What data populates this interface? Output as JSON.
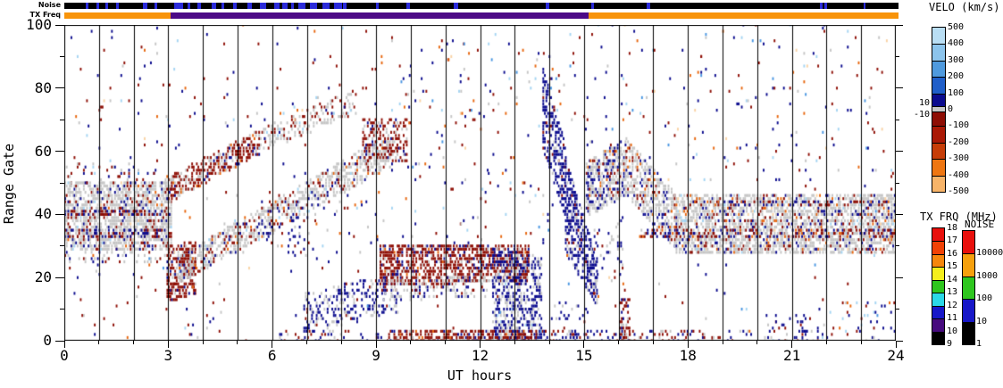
{
  "strip_labels": {
    "noise": "Noise",
    "tx_freq": "TX Freq"
  },
  "chart_data": {
    "type": "heatmap",
    "title": "",
    "xlabel": "UT hours",
    "ylabel": "Range Gate",
    "xlim": [
      0,
      24
    ],
    "ylim": [
      0,
      100
    ],
    "xticks": [
      0,
      3,
      6,
      9,
      12,
      15,
      18,
      21,
      24
    ],
    "xtick_minor_every": 1,
    "yticks": [
      0,
      20,
      40,
      60,
      80,
      100
    ],
    "ytick_minor_every": 10,
    "hour_gridlines": true,
    "grid_color": "#000000",
    "palette": {
      "gs": "#c6c6c6",
      "nvy": "#0b0b8e",
      "dred": "#8e0e05",
      "red2": "#b22208",
      "org": "#e8670f",
      "lorg": "#f59a4a",
      "pch": "#f9d3a5",
      "lbl": "#a5d5f3",
      "mbl": "#4a97e2"
    },
    "noise_strip": {
      "bg": "#000000",
      "mark_color": "#2b2bd9",
      "marks_hours": [
        [
          0.62,
          0.7
        ],
        [
          0.93,
          1.0
        ],
        [
          1.18,
          1.26
        ],
        [
          1.5,
          1.58
        ],
        [
          2.27,
          2.4
        ],
        [
          2.6,
          2.68
        ],
        [
          3.17,
          3.42
        ],
        [
          3.55,
          3.63
        ],
        [
          3.82,
          3.93
        ],
        [
          4.23,
          4.37
        ],
        [
          4.53,
          4.6
        ],
        [
          4.85,
          4.96
        ],
        [
          5.26,
          5.4
        ],
        [
          5.62,
          5.8
        ],
        [
          6.03,
          6.2
        ],
        [
          6.28,
          6.42
        ],
        [
          6.52,
          6.6
        ],
        [
          6.73,
          6.95
        ],
        [
          7.06,
          7.28
        ],
        [
          7.42,
          7.62
        ],
        [
          7.76,
          7.98
        ],
        [
          8.01,
          8.12
        ],
        [
          8.98,
          9.05
        ],
        [
          9.85,
          9.95
        ],
        [
          11.2,
          11.32
        ],
        [
          13.85,
          13.95
        ],
        [
          15.15,
          15.25
        ],
        [
          16.75,
          16.85
        ],
        [
          21.75,
          21.82
        ],
        [
          21.88,
          21.95
        ],
        [
          23.0,
          23.06
        ]
      ]
    },
    "txfreq_strip": {
      "segments": [
        {
          "from": 0,
          "to": 3.05,
          "color": "#f8940a"
        },
        {
          "from": 3.05,
          "to": 15.08,
          "color": "#4c0a86"
        },
        {
          "from": 15.08,
          "to": 24,
          "color": "#f8940a"
        }
      ]
    },
    "colorbars": {
      "velo": {
        "title": "VELO (km/s)",
        "labels": [
          "500",
          "400",
          "300",
          "200",
          "100",
          "0",
          "-100",
          "-200",
          "-300",
          "-400",
          "-500"
        ],
        "zero_side_labels": [
          "10",
          "-10"
        ],
        "segment_colors": [
          "#b9def4",
          "#8cc4ec",
          "#4f9ade",
          "#1f5ec9",
          "#0b0b8e",
          "#8e0e05",
          "#aa1906",
          "#c63d08",
          "#ee7612",
          "#f7b469"
        ],
        "zero_band_color": "#c6c6c6"
      },
      "txfrq": {
        "title": "TX FRQ (MHz)",
        "labels": [
          "18",
          "17",
          "16",
          "15",
          "14",
          "13",
          "12",
          "11",
          "10",
          "9"
        ],
        "segment_colors": [
          "#e8100c",
          "#f04206",
          "#f6870d",
          "#f4ee1c",
          "#2ec61e",
          "#2bd8e8",
          "#1717c8",
          "#470b7e",
          "#000000"
        ]
      },
      "noise": {
        "title": "NOISE",
        "labels": [
          "10000",
          "1000",
          "100",
          "10",
          "1"
        ],
        "segment_colors": [
          "#e8100c",
          "#f6a00d",
          "#2ec61e",
          "#1717c8",
          "#000000"
        ]
      }
    },
    "features": [
      {
        "t": [
          0,
          3.1
        ],
        "g0": [
          29,
          50
        ],
        "g1": [
          29,
          50
        ],
        "d": 0.62,
        "mix": {
          "gs": 0.75,
          "dred": 0.11,
          "nvy": 0.09,
          "org": 0.02,
          "lbl": 0.02,
          "pch": 0.01
        }
      },
      {
        "t": [
          0,
          3.05
        ],
        "g0": [
          40,
          41
        ],
        "g1": [
          40,
          41
        ],
        "d": 0.5,
        "mix": {
          "dred": 0.5,
          "nvy": 0.3,
          "gs": 0.2
        }
      },
      {
        "t": [
          0,
          3.05
        ],
        "g0": [
          33,
          35
        ],
        "g1": [
          33,
          35
        ],
        "d": 0.45,
        "mix": {
          "nvy": 0.4,
          "dred": 0.4,
          "gs": 0.2
        }
      },
      {
        "t": [
          0,
          3.1
        ],
        "g0": [
          50,
          56
        ],
        "g1": [
          50,
          56
        ],
        "d": 0.08,
        "mix": {
          "dred": 0.4,
          "nvy": 0.3,
          "gs": 0.3
        }
      },
      {
        "t": [
          0,
          3.1
        ],
        "g0": [
          25,
          29
        ],
        "g1": [
          25,
          29
        ],
        "d": 0.12,
        "mix": {
          "gs": 0.6,
          "nvy": 0.2,
          "dred": 0.2
        }
      },
      {
        "t": [
          2.9,
          5.6
        ],
        "g0": [
          44,
          52
        ],
        "g1": [
          60,
          67
        ],
        "d": 0.5,
        "mix": {
          "dred": 0.6,
          "gs": 0.25,
          "nvy": 0.1,
          "org": 0.05
        }
      },
      {
        "t": [
          5.6,
          8.4
        ],
        "g0": [
          60,
          67
        ],
        "g1": [
          73,
          80
        ],
        "d": 0.33,
        "mix": {
          "gs": 0.55,
          "dred": 0.33,
          "nvy": 0.06,
          "lbl": 0.06
        }
      },
      {
        "t": [
          2.95,
          3.8
        ],
        "g0": [
          13,
          30
        ],
        "g1": [
          16,
          32
        ],
        "d": 0.55,
        "mix": {
          "dred": 0.75,
          "gs": 0.15,
          "nvy": 0.1
        }
      },
      {
        "t": [
          3.3,
          9.4
        ],
        "g0": [
          19,
          27
        ],
        "g1": [
          56,
          66
        ],
        "d": 0.5,
        "mix": {
          "gs": 0.7,
          "dred": 0.13,
          "nvy": 0.1,
          "org": 0.04,
          "lbl": 0.03
        }
      },
      {
        "t": [
          8.6,
          9.9
        ],
        "g0": [
          57,
          70
        ],
        "g1": [
          57,
          70
        ],
        "d": 0.42,
        "mix": {
          "dred": 0.68,
          "gs": 0.22,
          "nvy": 0.1
        }
      },
      {
        "t": [
          6.9,
          9.6
        ],
        "g0": [
          3,
          15
        ],
        "g1": [
          10,
          22
        ],
        "d": 0.28,
        "mix": {
          "nvy": 0.6,
          "gs": 0.3,
          "dred": 0.1
        }
      },
      {
        "t": [
          9.1,
          13.4
        ],
        "g0": [
          18,
          30
        ],
        "g1": [
          20,
          31
        ],
        "d": 0.55,
        "mix": {
          "dred": 0.78,
          "gs": 0.1,
          "nvy": 0.1,
          "org": 0.02
        }
      },
      {
        "t": [
          9.2,
          12.2
        ],
        "g0": [
          13,
          19
        ],
        "g1": [
          15,
          21
        ],
        "d": 0.28,
        "mix": {
          "gs": 0.6,
          "nvy": 0.25,
          "dred": 0.15
        }
      },
      {
        "t": [
          12.35,
          13.75
        ],
        "g0": [
          0,
          30
        ],
        "g1": [
          0,
          26
        ],
        "d": 0.5,
        "mix": {
          "nvy": 0.62,
          "gs": 0.3,
          "dred": 0.05,
          "lbl": 0.03
        }
      },
      {
        "t": [
          13.8,
          14.45
        ],
        "g0": [
          60,
          86
        ],
        "g1": [
          40,
          62
        ],
        "d": 0.5,
        "mix": {
          "nvy": 0.85,
          "gs": 0.08,
          "dred": 0.07
        }
      },
      {
        "t": [
          14.45,
          15.35
        ],
        "g0": [
          28,
          58
        ],
        "g1": [
          12,
          26
        ],
        "d": 0.55,
        "mix": {
          "nvy": 0.75,
          "gs": 0.2,
          "dred": 0.05
        }
      },
      {
        "t": [
          15.05,
          16.2
        ],
        "g0": [
          40,
          57
        ],
        "g1": [
          47,
          64
        ],
        "d": 0.52,
        "mix": {
          "gs": 0.58,
          "nvy": 0.3,
          "dred": 0.08,
          "org": 0.04
        }
      },
      {
        "t": [
          16.2,
          17.6
        ],
        "g0": [
          47,
          64
        ],
        "g1": [
          30,
          47
        ],
        "d": 0.52,
        "mix": {
          "gs": 0.66,
          "nvy": 0.18,
          "dred": 0.11,
          "org": 0.05
        }
      },
      {
        "t": [
          17.6,
          24
        ],
        "g0": [
          28,
          47
        ],
        "g1": [
          28,
          46
        ],
        "d": 0.6,
        "mix": {
          "gs": 0.72,
          "dred": 0.1,
          "nvy": 0.1,
          "org": 0.04,
          "lbl": 0.02,
          "pch": 0.02
        }
      },
      {
        "t": [
          16.5,
          24
        ],
        "g0": [
          33,
          35
        ],
        "g1": [
          33,
          35
        ],
        "d": 0.3,
        "mix": {
          "dred": 0.45,
          "nvy": 0.35,
          "org": 0.1,
          "gs": 0.1
        }
      },
      {
        "t": [
          18,
          24
        ],
        "g0": [
          43,
          44
        ],
        "g1": [
          43,
          44
        ],
        "d": 0.25,
        "mix": {
          "nvy": 0.4,
          "dred": 0.3,
          "org": 0.15,
          "gs": 0.15
        }
      },
      {
        "t": [
          15.1,
          16.1
        ],
        "g0": [
          14,
          34
        ],
        "g1": [
          22,
          40
        ],
        "d": 0.12,
        "mix": {
          "nvy": 0.5,
          "gs": 0.35,
          "dred": 0.15
        }
      },
      {
        "t": [
          14.0,
          15.1
        ],
        "g0": [
          0,
          12
        ],
        "g1": [
          0,
          12
        ],
        "d": 0.1,
        "mix": {
          "nvy": 0.7,
          "gs": 0.2,
          "dred": 0.1
        }
      },
      {
        "t": [
          6.2,
          9.5
        ],
        "g0": [
          0,
          3
        ],
        "g1": [
          0,
          3
        ],
        "d": 0.2,
        "mix": {
          "nvy": 0.5,
          "dred": 0.35,
          "gs": 0.15
        }
      },
      {
        "t": [
          9.5,
          13.6
        ],
        "g0": [
          0,
          3
        ],
        "g1": [
          0,
          3
        ],
        "d": 0.6,
        "mix": {
          "dred": 0.72,
          "nvy": 0.12,
          "gs": 0.12,
          "org": 0.04
        }
      },
      {
        "t": [
          13.6,
          18
        ],
        "g0": [
          0,
          3
        ],
        "g1": [
          0,
          3
        ],
        "d": 0.22,
        "mix": {
          "nvy": 0.45,
          "dred": 0.4,
          "gs": 0.15
        }
      },
      {
        "t": [
          18,
          20.2
        ],
        "g0": [
          0,
          3
        ],
        "g1": [
          0,
          3
        ],
        "d": 0.12,
        "mix": {
          "nvy": 0.5,
          "dred": 0.35,
          "gs": 0.15
        }
      },
      {
        "t": [
          20.2,
          21.5
        ],
        "g0": [
          0,
          8
        ],
        "g1": [
          0,
          8
        ],
        "d": 0.18,
        "mix": {
          "nvy": 0.7,
          "gs": 0.15,
          "dred": 0.15
        }
      },
      {
        "t": [
          21.5,
          24
        ],
        "g0": [
          0,
          12
        ],
        "g1": [
          0,
          12
        ],
        "d": 0.07,
        "mix": {
          "nvy": 0.4,
          "dred": 0.25,
          "org": 0.15,
          "gs": 0.1,
          "lbl": 0.1
        }
      },
      {
        "t": [
          16.02,
          16.3
        ],
        "g0": [
          0,
          13
        ],
        "g1": [
          0,
          13
        ],
        "d": 0.42,
        "mix": {
          "dred": 0.75,
          "nvy": 0.15,
          "gs": 0.1
        }
      },
      {
        "t": [
          5.6,
          7.3
        ],
        "g0": [
          26,
          40
        ],
        "g1": [
          26,
          40
        ],
        "d": 0.06,
        "mix": {
          "nvy": 0.6,
          "dred": 0.2,
          "gs": 0.2
        }
      },
      {
        "t": [
          9.3,
          14.3
        ],
        "g0": [
          31,
          96
        ],
        "g1": [
          31,
          96
        ],
        "d": 0.02,
        "mix": {
          "nvy": 0.3,
          "dred": 0.25,
          "lbl": 0.12,
          "org": 0.1,
          "pch": 0.07,
          "gs": 0.11,
          "mbl": 0.05
        }
      },
      {
        "t": [
          14.4,
          24
        ],
        "g0": [
          48,
          100
        ],
        "g1": [
          48,
          100
        ],
        "d": 0.013,
        "mix": {
          "nvy": 0.28,
          "dred": 0.28,
          "lbl": 0.12,
          "org": 0.08,
          "pch": 0.08,
          "gs": 0.12,
          "mbl": 0.04
        }
      },
      {
        "t": [
          0,
          3.2
        ],
        "g0": [
          52,
          100
        ],
        "g1": [
          52,
          100
        ],
        "d": 0.015,
        "mix": {
          "dred": 0.35,
          "nvy": 0.3,
          "gs": 0.12,
          "lbl": 0.1,
          "org": 0.08,
          "pch": 0.05
        }
      },
      {
        "t": [
          0,
          4.6
        ],
        "g0": [
          0,
          28
        ],
        "g1": [
          0,
          28
        ],
        "d": 0.012,
        "mix": {
          "dred": 0.3,
          "nvy": 0.3,
          "gs": 0.25,
          "org": 0.1,
          "lbl": 0.05
        }
      },
      {
        "t": [
          3.2,
          9.3
        ],
        "g0": [
          68,
          100
        ],
        "g1": [
          68,
          100
        ],
        "d": 0.012,
        "mix": {
          "dred": 0.33,
          "nvy": 0.3,
          "gs": 0.12,
          "lbl": 0.1,
          "org": 0.1,
          "pch": 0.05
        }
      },
      {
        "t": [
          4.6,
          9.2
        ],
        "g0": [
          28,
          47
        ],
        "g1": [
          28,
          47
        ],
        "d": 0.03,
        "mix": {
          "nvy": 0.35,
          "dred": 0.3,
          "gs": 0.2,
          "lbl": 0.05,
          "org": 0.1
        }
      },
      {
        "t": [
          0,
          24
        ],
        "g0": [
          0,
          100
        ],
        "g1": [
          0,
          100
        ],
        "d": 0.005,
        "mix": {
          "nvy": 0.3,
          "dred": 0.3,
          "gs": 0.15,
          "lbl": 0.08,
          "mbl": 0.05,
          "org": 0.07,
          "pch": 0.05
        }
      }
    ]
  }
}
